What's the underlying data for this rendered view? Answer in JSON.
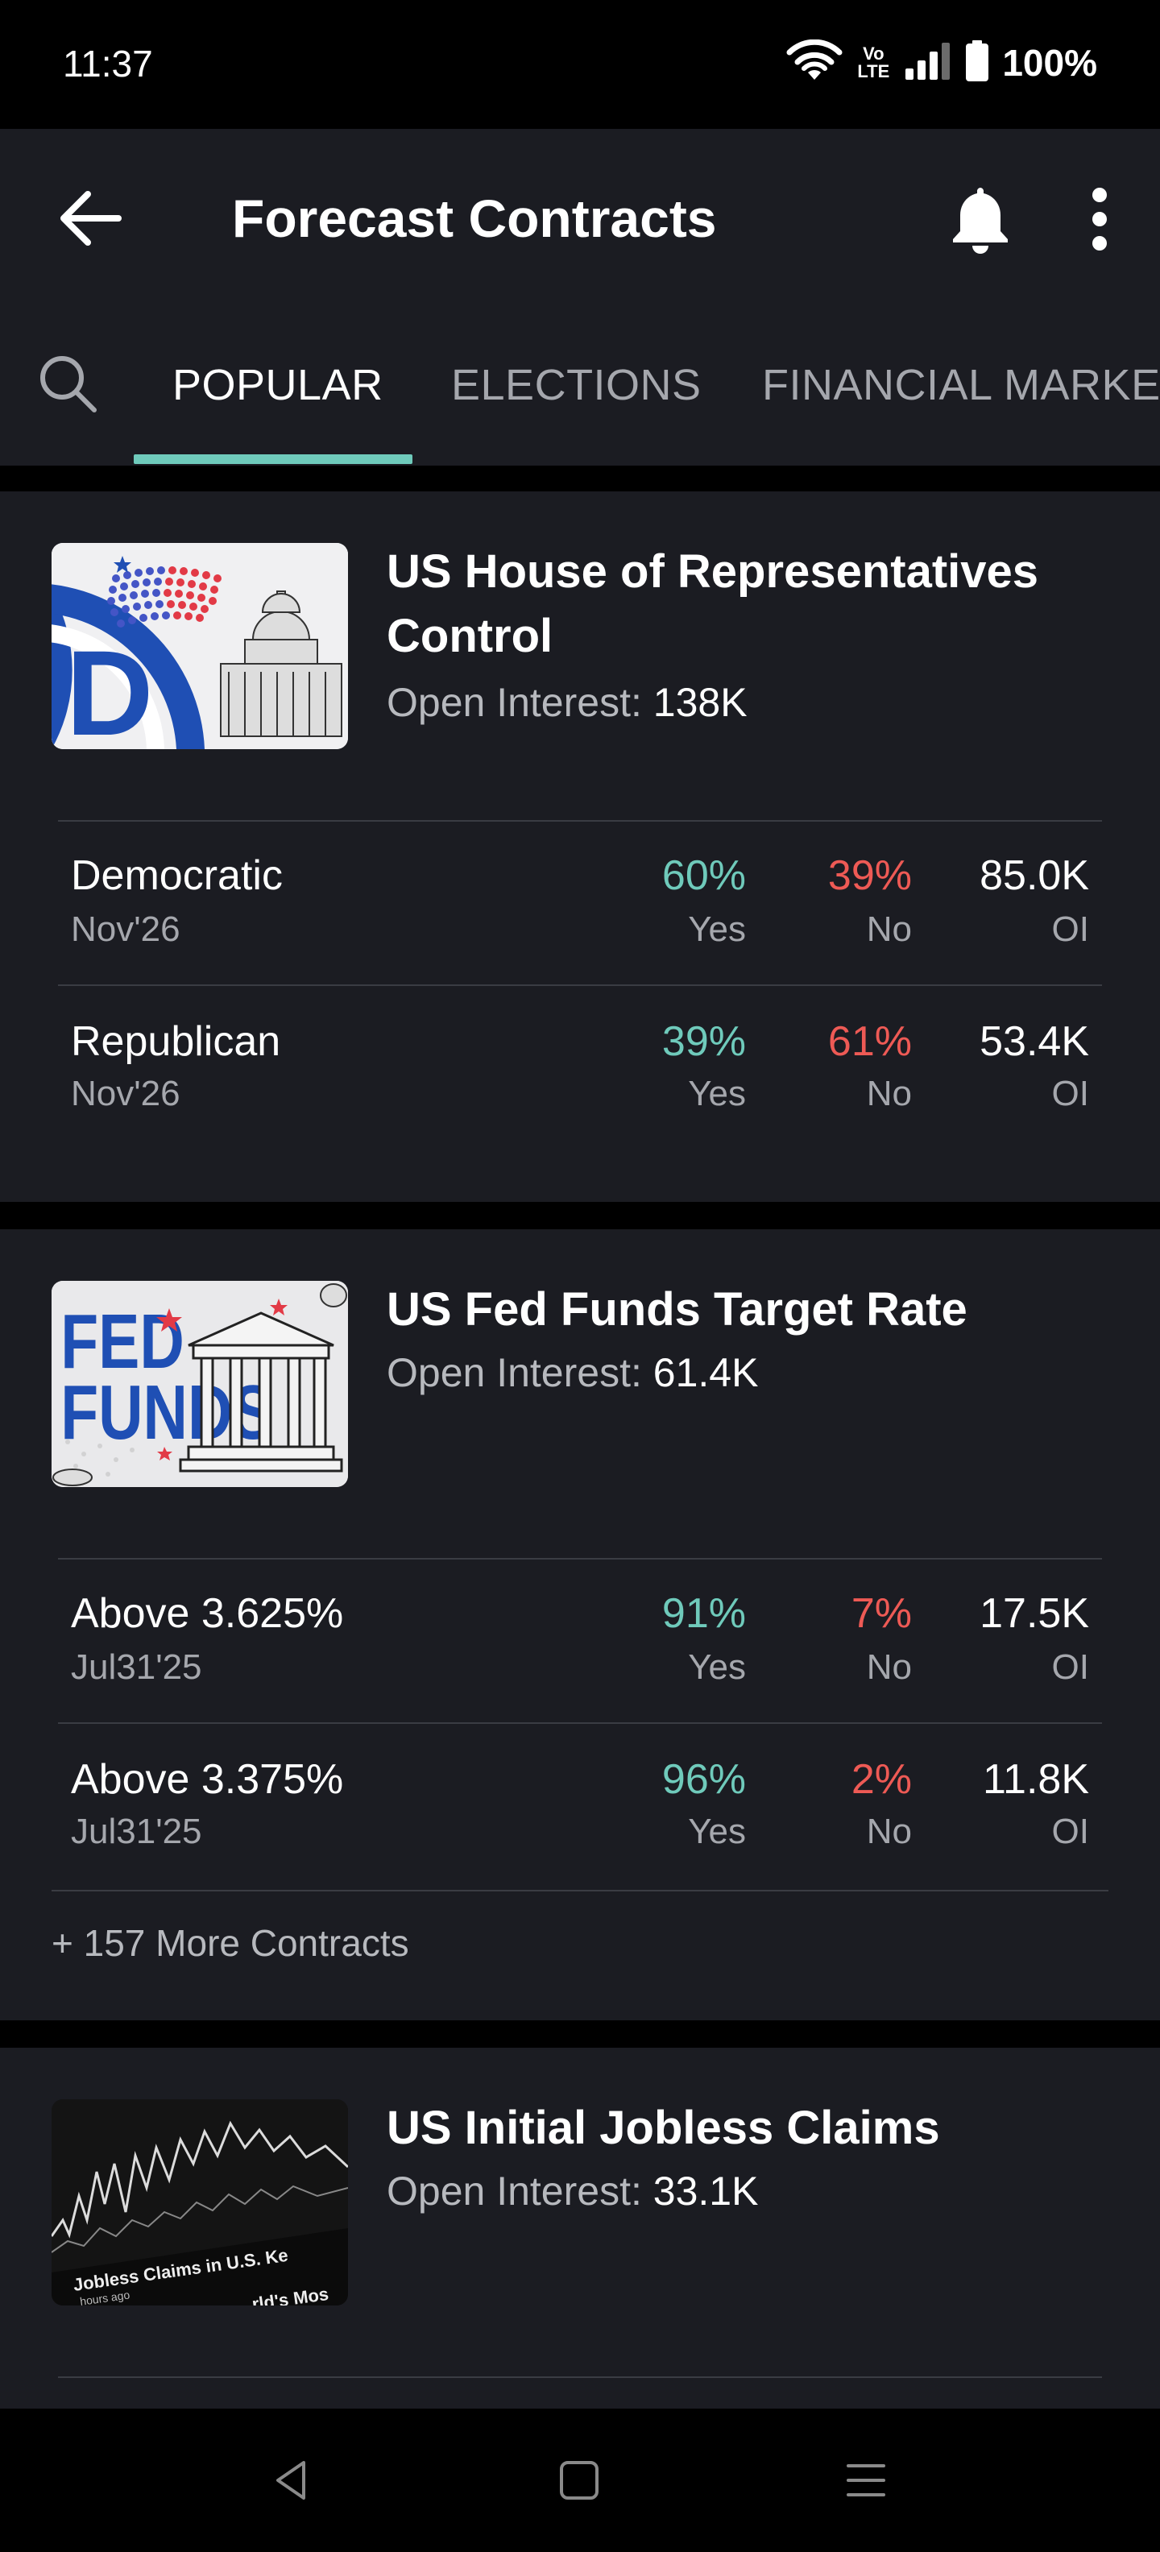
{
  "status_bar": {
    "time": "11:37",
    "network_label": "Vo LTE",
    "battery": "100%",
    "icons": [
      "wifi-icon",
      "volte-icon",
      "signal-icon",
      "battery-icon"
    ]
  },
  "header": {
    "title": "Forecast Contracts",
    "back_icon": "arrow-left-icon",
    "bell_icon": "bell-icon",
    "more_icon": "more-vertical-icon"
  },
  "tabs": {
    "search_icon": "search-icon",
    "items": [
      {
        "label": "POPULAR",
        "active": true
      },
      {
        "label": "ELECTIONS",
        "active": false
      },
      {
        "label": "FINANCIAL MARKETS",
        "active": false
      }
    ],
    "accent_color": "#6fcabb"
  },
  "colors": {
    "background": "#000000",
    "card": "#1b1c22",
    "yes": "#6fcabb",
    "no": "#ee5a55"
  },
  "cards": [
    {
      "title_line1": "US House of Representatives",
      "title_line2": "Control",
      "oi_label": "Open Interest:",
      "oi_value": "138K",
      "rows": [
        {
          "name": "Democratic",
          "date": "Nov'26",
          "yes": "60%",
          "no": "39%",
          "oi": "85.0K"
        },
        {
          "name": "Republican",
          "date": "Nov'26",
          "yes": "39%",
          "no": "61%",
          "oi": "53.4K"
        }
      ]
    },
    {
      "title_line1": "US Fed Funds Target Rate",
      "oi_label": "Open Interest:",
      "oi_value": "61.4K",
      "thumb_text_1": "FED",
      "thumb_text_2": "FUNDS",
      "rows": [
        {
          "name": "Above 3.625%",
          "date": "Jul31'25",
          "yes": "91%",
          "no": "7%",
          "oi": "17.5K"
        },
        {
          "name": "Above 3.375%",
          "date": "Jul31'25",
          "yes": "96%",
          "no": "2%",
          "oi": "11.8K"
        }
      ],
      "more_label": "+ 157 More Contracts"
    },
    {
      "title_line1": "US Initial Jobless Claims",
      "oi_label": "Open Interest:",
      "oi_value": "33.1K",
      "thumb_caption": "Jobless Claims in U.S. Ke",
      "thumb_caption_2": "hours ago",
      "thumb_caption_3": "rld's Mos"
    }
  ],
  "labels": {
    "yes": "Yes",
    "no": "No",
    "oi": "OI"
  },
  "nav": {
    "back_icon": "nav-back-icon",
    "home_icon": "nav-home-icon",
    "recents_icon": "nav-recents-icon"
  }
}
